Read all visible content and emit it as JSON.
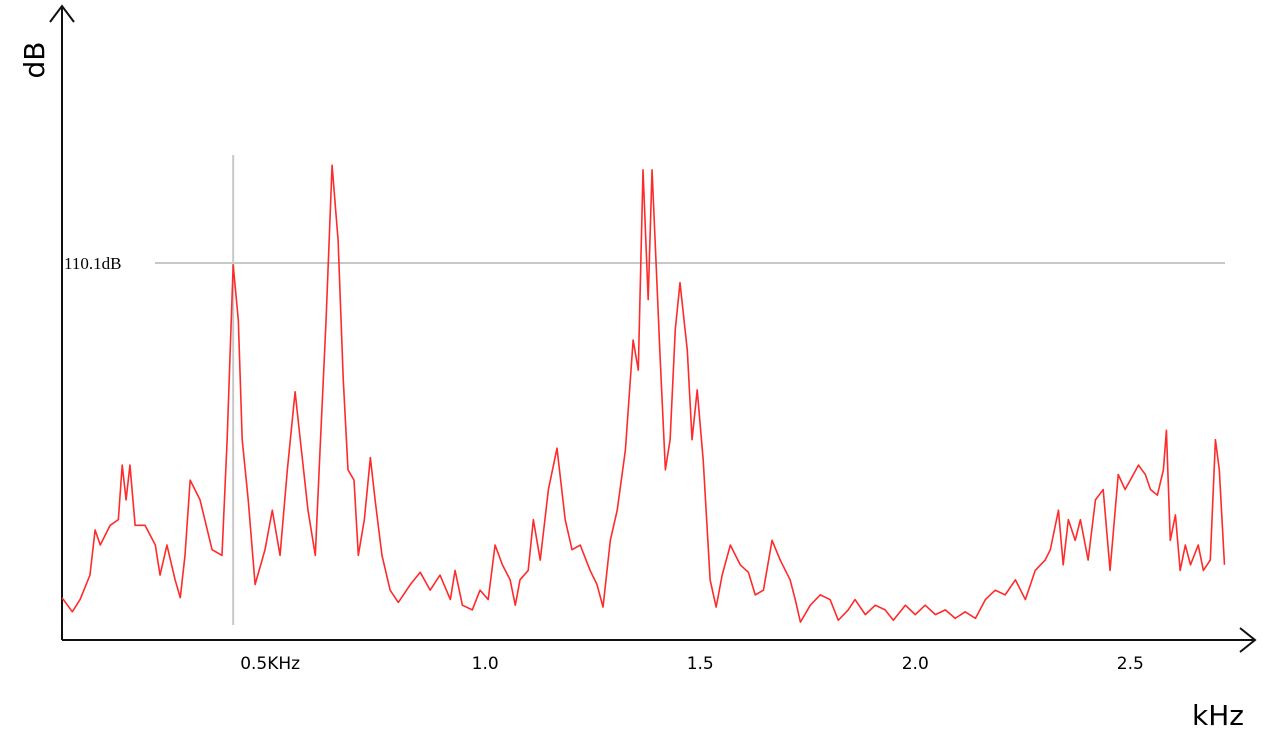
{
  "chart_data": {
    "type": "line",
    "x_label": "kHz",
    "y_label": "dB",
    "color": "#ff2a2a",
    "xlim": [
      0.016,
      2.79
    ],
    "ylim": [
      70,
      137
    ],
    "xticks": [
      {
        "value": 0.5,
        "label": "0.5KHz"
      },
      {
        "value": 1,
        "label": "1.0"
      },
      {
        "value": 1.5,
        "label": "1.5"
      },
      {
        "value": 2,
        "label": "2.0"
      },
      {
        "value": 2.5,
        "label": "2.5"
      }
    ],
    "reference_line": {
      "value": 110.1,
      "label": "110.1dB"
    },
    "cursor_x": 0.414,
    "x": [
      0.016,
      0.04,
      0.058,
      0.081,
      0.093,
      0.105,
      0.128,
      0.147,
      0.156,
      0.165,
      0.174,
      0.186,
      0.209,
      0.233,
      0.244,
      0.26,
      0.279,
      0.291,
      0.302,
      0.314,
      0.337,
      0.365,
      0.388,
      0.4,
      0.414,
      0.426,
      0.435,
      0.449,
      0.465,
      0.488,
      0.505,
      0.523,
      0.54,
      0.558,
      0.57,
      0.588,
      0.605,
      0.616,
      0.63,
      0.644,
      0.658,
      0.67,
      0.681,
      0.695,
      0.705,
      0.719,
      0.733,
      0.744,
      0.76,
      0.779,
      0.798,
      0.826,
      0.849,
      0.872,
      0.895,
      0.919,
      0.93,
      0.947,
      0.97,
      0.988,
      1.007,
      1.023,
      1.04,
      1.058,
      1.07,
      1.081,
      1.1,
      1.112,
      1.128,
      1.147,
      1.167,
      1.186,
      1.202,
      1.221,
      1.244,
      1.26,
      1.274,
      1.291,
      1.307,
      1.326,
      1.344,
      1.356,
      1.367,
      1.379,
      1.388,
      1.398,
      1.407,
      1.419,
      1.43,
      1.442,
      1.453,
      1.47,
      1.481,
      1.493,
      1.507,
      1.523,
      1.537,
      1.551,
      1.57,
      1.593,
      1.612,
      1.628,
      1.647,
      1.667,
      1.686,
      1.709,
      1.721,
      1.733,
      1.756,
      1.779,
      1.802,
      1.821,
      1.844,
      1.86,
      1.884,
      1.907,
      1.93,
      1.949,
      1.977,
      2.0,
      2.023,
      2.047,
      2.07,
      2.093,
      2.116,
      2.14,
      2.163,
      2.186,
      2.209,
      2.233,
      2.256,
      2.279,
      2.302,
      2.314,
      2.333,
      2.344,
      2.356,
      2.372,
      2.384,
      2.402,
      2.419,
      2.437,
      2.453,
      2.472,
      2.488,
      2.5,
      2.519,
      2.535,
      2.547,
      2.563,
      2.577,
      2.584,
      2.593,
      2.605,
      2.616,
      2.628,
      2.64,
      2.658,
      2.67,
      2.686,
      2.698,
      2.707,
      2.719
    ],
    "values": [
      74.5,
      73.0,
      74.3,
      76.9,
      81.7,
      80.1,
      82.2,
      82.8,
      88.6,
      84.9,
      88.6,
      82.2,
      82.2,
      80.1,
      76.9,
      80.1,
      76.4,
      74.5,
      79.0,
      87.0,
      84.9,
      79.6,
      79.0,
      91.3,
      109.9,
      104.0,
      91.3,
      84.9,
      75.9,
      79.6,
      83.8,
      79.0,
      88.1,
      96.4,
      91.3,
      83.8,
      79.0,
      90.2,
      104.0,
      120.5,
      112.5,
      97.7,
      88.1,
      87.0,
      79.0,
      82.8,
      89.4,
      84.9,
      79.0,
      75.3,
      74.0,
      75.9,
      77.2,
      75.3,
      76.9,
      74.3,
      77.4,
      73.7,
      73.2,
      75.3,
      74.3,
      80.1,
      78.0,
      76.4,
      73.7,
      76.4,
      77.4,
      82.8,
      78.5,
      86.0,
      90.4,
      82.8,
      79.6,
      80.1,
      77.4,
      75.9,
      73.5,
      80.6,
      83.8,
      90.2,
      101.9,
      98.7,
      120.0,
      106.2,
      120.0,
      109.4,
      99.8,
      88.1,
      91.3,
      103.0,
      108.0,
      100.8,
      91.3,
      96.6,
      89.1,
      76.4,
      73.5,
      76.9,
      80.1,
      78.0,
      77.2,
      74.8,
      75.3,
      80.6,
      78.5,
      76.4,
      74.3,
      71.9,
      73.7,
      74.8,
      74.3,
      72.1,
      73.2,
      74.3,
      72.7,
      73.7,
      73.2,
      72.1,
      73.7,
      72.7,
      73.7,
      72.7,
      73.2,
      72.3,
      73.0,
      72.3,
      74.3,
      75.3,
      74.8,
      76.4,
      74.3,
      77.4,
      78.5,
      79.6,
      83.8,
      78.0,
      82.8,
      80.6,
      82.8,
      78.5,
      84.9,
      86.0,
      77.4,
      87.6,
      86.0,
      87.0,
      88.6,
      87.6,
      86.0,
      85.4,
      88.1,
      92.3,
      80.6,
      83.3,
      77.4,
      80.1,
      78.0,
      80.1,
      77.4,
      78.5,
      91.3,
      88.1,
      78.0
    ]
  }
}
